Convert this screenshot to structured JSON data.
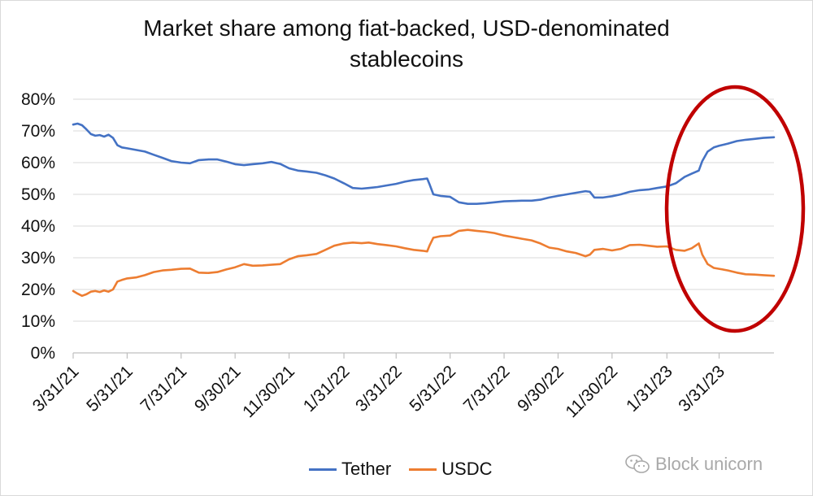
{
  "chart_data": {
    "type": "line",
    "title": "Market share among fiat-backed, USD-denominated stablecoins",
    "title_lines": [
      "Market share among fiat-backed, USD-denominated",
      "stablecoins"
    ],
    "ylim": [
      0,
      80
    ],
    "yticks": [
      "0%",
      "10%",
      "20%",
      "30%",
      "40%",
      "50%",
      "60%",
      "70%",
      "80%"
    ],
    "yticks_values": [
      0,
      10,
      20,
      30,
      40,
      50,
      60,
      70,
      80
    ],
    "xticks": [
      "3/31/21",
      "5/31/21",
      "7/31/21",
      "9/30/21",
      "11/30/21",
      "1/31/22",
      "3/31/22",
      "5/31/22",
      "7/31/22",
      "9/30/22",
      "11/30/22",
      "1/31/23",
      "3/31/23"
    ],
    "xticks_values": [
      "2021-03-31",
      "2021-05-31",
      "2021-07-31",
      "2021-09-30",
      "2021-11-30",
      "2022-01-31",
      "2022-03-31",
      "2022-05-31",
      "2022-07-31",
      "2022-09-30",
      "2022-11-30",
      "2023-01-31",
      "2023-03-31"
    ],
    "xlim": [
      "2021-03-31",
      "2023-06-01"
    ],
    "grid": "horizontal",
    "legend_position": "bottom",
    "series": [
      {
        "name": "Tether",
        "color": "#4472c4",
        "points": [
          [
            "2021-03-31",
            72
          ],
          [
            "2021-04-05",
            72.3
          ],
          [
            "2021-04-10",
            71.8
          ],
          [
            "2021-04-15",
            70.5
          ],
          [
            "2021-04-20",
            69
          ],
          [
            "2021-04-25",
            68.5
          ],
          [
            "2021-04-30",
            68.7
          ],
          [
            "2021-05-05",
            68.2
          ],
          [
            "2021-05-10",
            68.8
          ],
          [
            "2021-05-15",
            67.8
          ],
          [
            "2021-05-20",
            65.5
          ],
          [
            "2021-05-25",
            64.8
          ],
          [
            "2021-05-31",
            64.5
          ],
          [
            "2021-06-10",
            64
          ],
          [
            "2021-06-20",
            63.5
          ],
          [
            "2021-06-30",
            62.5
          ],
          [
            "2021-07-10",
            61.5
          ],
          [
            "2021-07-20",
            60.5
          ],
          [
            "2021-07-31",
            60
          ],
          [
            "2021-08-10",
            59.8
          ],
          [
            "2021-08-20",
            60.8
          ],
          [
            "2021-08-31",
            61
          ],
          [
            "2021-09-10",
            61
          ],
          [
            "2021-09-20",
            60.3
          ],
          [
            "2021-09-30",
            59.5
          ],
          [
            "2021-10-10",
            59.2
          ],
          [
            "2021-10-20",
            59.5
          ],
          [
            "2021-10-31",
            59.8
          ],
          [
            "2021-11-10",
            60.2
          ],
          [
            "2021-11-20",
            59.6
          ],
          [
            "2021-11-30",
            58.2
          ],
          [
            "2021-12-10",
            57.5
          ],
          [
            "2021-12-20",
            57.2
          ],
          [
            "2021-12-31",
            56.8
          ],
          [
            "2022-01-10",
            56
          ],
          [
            "2022-01-20",
            55
          ],
          [
            "2022-01-31",
            53.5
          ],
          [
            "2022-02-10",
            52
          ],
          [
            "2022-02-20",
            51.8
          ],
          [
            "2022-02-28",
            52
          ],
          [
            "2022-03-10",
            52.3
          ],
          [
            "2022-03-20",
            52.8
          ],
          [
            "2022-03-31",
            53.3
          ],
          [
            "2022-04-10",
            54
          ],
          [
            "2022-04-20",
            54.5
          ],
          [
            "2022-04-30",
            54.8
          ],
          [
            "2022-05-05",
            55
          ],
          [
            "2022-05-08",
            53
          ],
          [
            "2022-05-12",
            50
          ],
          [
            "2022-05-20",
            49.5
          ],
          [
            "2022-05-31",
            49.2
          ],
          [
            "2022-06-10",
            47.5
          ],
          [
            "2022-06-20",
            47
          ],
          [
            "2022-06-30",
            47
          ],
          [
            "2022-07-10",
            47.2
          ],
          [
            "2022-07-20",
            47.5
          ],
          [
            "2022-07-31",
            47.8
          ],
          [
            "2022-08-10",
            47.9
          ],
          [
            "2022-08-20",
            48
          ],
          [
            "2022-08-31",
            48
          ],
          [
            "2022-09-10",
            48.3
          ],
          [
            "2022-09-20",
            49
          ],
          [
            "2022-09-30",
            49.5
          ],
          [
            "2022-10-10",
            50
          ],
          [
            "2022-10-20",
            50.5
          ],
          [
            "2022-10-31",
            51
          ],
          [
            "2022-11-05",
            50.8
          ],
          [
            "2022-11-10",
            49
          ],
          [
            "2022-11-20",
            49
          ],
          [
            "2022-11-30",
            49.4
          ],
          [
            "2022-12-10",
            50
          ],
          [
            "2022-12-20",
            50.8
          ],
          [
            "2022-12-31",
            51.3
          ],
          [
            "2023-01-10",
            51.5
          ],
          [
            "2023-01-20",
            52
          ],
          [
            "2023-01-31",
            52.5
          ],
          [
            "2023-02-10",
            53.5
          ],
          [
            "2023-02-20",
            55.5
          ],
          [
            "2023-02-28",
            56.5
          ],
          [
            "2023-03-08",
            57.5
          ],
          [
            "2023-03-12",
            60.5
          ],
          [
            "2023-03-18",
            63.5
          ],
          [
            "2023-03-25",
            64.8
          ],
          [
            "2023-03-31",
            65.3
          ],
          [
            "2023-04-10",
            66
          ],
          [
            "2023-04-20",
            66.8
          ],
          [
            "2023-04-30",
            67.2
          ],
          [
            "2023-05-10",
            67.5
          ],
          [
            "2023-05-20",
            67.8
          ],
          [
            "2023-06-01",
            68
          ]
        ]
      },
      {
        "name": "USDC",
        "color": "#ed7d31",
        "points": [
          [
            "2021-03-31",
            19.5
          ],
          [
            "2021-04-05",
            18.7
          ],
          [
            "2021-04-10",
            18
          ],
          [
            "2021-04-15",
            18.5
          ],
          [
            "2021-04-20",
            19.3
          ],
          [
            "2021-04-25",
            19.5
          ],
          [
            "2021-04-30",
            19.2
          ],
          [
            "2021-05-05",
            19.7
          ],
          [
            "2021-05-10",
            19.3
          ],
          [
            "2021-05-15",
            20
          ],
          [
            "2021-05-20",
            22.5
          ],
          [
            "2021-05-25",
            23
          ],
          [
            "2021-05-31",
            23.5
          ],
          [
            "2021-06-10",
            23.8
          ],
          [
            "2021-06-20",
            24.5
          ],
          [
            "2021-06-30",
            25.5
          ],
          [
            "2021-07-10",
            26
          ],
          [
            "2021-07-20",
            26.2
          ],
          [
            "2021-07-31",
            26.5
          ],
          [
            "2021-08-10",
            26.6
          ],
          [
            "2021-08-20",
            25.3
          ],
          [
            "2021-08-31",
            25.2
          ],
          [
            "2021-09-10",
            25.5
          ],
          [
            "2021-09-20",
            26.3
          ],
          [
            "2021-09-30",
            27
          ],
          [
            "2021-10-10",
            28
          ],
          [
            "2021-10-20",
            27.5
          ],
          [
            "2021-10-31",
            27.6
          ],
          [
            "2021-11-10",
            27.8
          ],
          [
            "2021-11-20",
            28
          ],
          [
            "2021-11-30",
            29.5
          ],
          [
            "2021-12-10",
            30.5
          ],
          [
            "2021-12-20",
            30.8
          ],
          [
            "2021-12-31",
            31.2
          ],
          [
            "2022-01-10",
            32.5
          ],
          [
            "2022-01-20",
            33.8
          ],
          [
            "2022-01-31",
            34.5
          ],
          [
            "2022-02-10",
            34.8
          ],
          [
            "2022-02-20",
            34.6
          ],
          [
            "2022-02-28",
            34.8
          ],
          [
            "2022-03-10",
            34.3
          ],
          [
            "2022-03-20",
            34
          ],
          [
            "2022-03-31",
            33.6
          ],
          [
            "2022-04-10",
            33
          ],
          [
            "2022-04-20",
            32.5
          ],
          [
            "2022-04-30",
            32.2
          ],
          [
            "2022-05-05",
            32
          ],
          [
            "2022-05-08",
            34
          ],
          [
            "2022-05-12",
            36.3
          ],
          [
            "2022-05-20",
            36.8
          ],
          [
            "2022-05-31",
            37
          ],
          [
            "2022-06-10",
            38.5
          ],
          [
            "2022-06-20",
            38.8
          ],
          [
            "2022-06-30",
            38.5
          ],
          [
            "2022-07-10",
            38.2
          ],
          [
            "2022-07-20",
            37.8
          ],
          [
            "2022-07-31",
            37
          ],
          [
            "2022-08-10",
            36.5
          ],
          [
            "2022-08-20",
            36
          ],
          [
            "2022-08-31",
            35.5
          ],
          [
            "2022-09-10",
            34.5
          ],
          [
            "2022-09-20",
            33.2
          ],
          [
            "2022-09-30",
            32.8
          ],
          [
            "2022-10-10",
            32
          ],
          [
            "2022-10-20",
            31.5
          ],
          [
            "2022-10-31",
            30.5
          ],
          [
            "2022-11-05",
            31
          ],
          [
            "2022-11-10",
            32.5
          ],
          [
            "2022-11-20",
            32.8
          ],
          [
            "2022-11-30",
            32.3
          ],
          [
            "2022-12-10",
            32.8
          ],
          [
            "2022-12-20",
            34
          ],
          [
            "2022-12-31",
            34.1
          ],
          [
            "2023-01-10",
            33.8
          ],
          [
            "2023-01-20",
            33.5
          ],
          [
            "2023-01-31",
            33.6
          ],
          [
            "2023-02-10",
            32.5
          ],
          [
            "2023-02-20",
            32.2
          ],
          [
            "2023-02-28",
            33
          ],
          [
            "2023-03-08",
            34.5
          ],
          [
            "2023-03-12",
            31
          ],
          [
            "2023-03-18",
            28
          ],
          [
            "2023-03-25",
            26.8
          ],
          [
            "2023-03-31",
            26.5
          ],
          [
            "2023-04-10",
            26
          ],
          [
            "2023-04-20",
            25.3
          ],
          [
            "2023-04-30",
            24.8
          ],
          [
            "2023-05-10",
            24.7
          ],
          [
            "2023-05-20",
            24.5
          ],
          [
            "2023-06-01",
            24.3
          ]
        ]
      }
    ],
    "annotations": [
      {
        "type": "ellipse",
        "color": "#c00000",
        "description_region": "around early 2023 to end"
      }
    ]
  },
  "legend": {
    "tether_label": "Tether",
    "usdc_label": "USDC"
  },
  "watermark": {
    "text": "Block unicorn"
  }
}
